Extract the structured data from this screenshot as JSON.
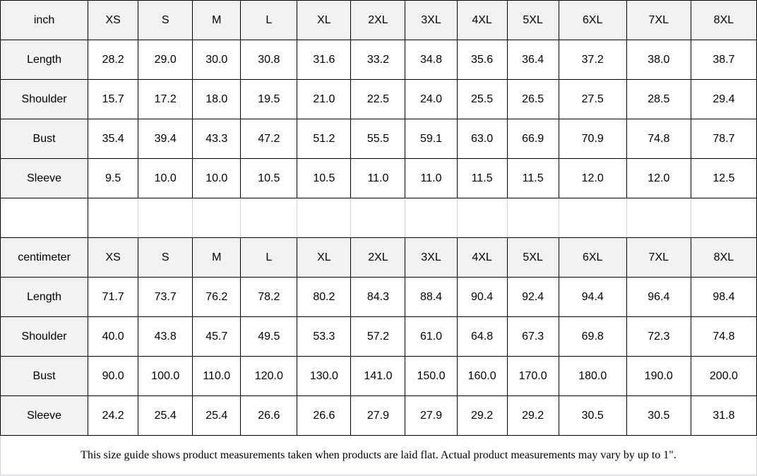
{
  "chart_data": {
    "type": "table",
    "size_columns": [
      "XS",
      "S",
      "M",
      "L",
      "XL",
      "2XL",
      "3XL",
      "4XL",
      "5XL",
      "6XL",
      "7XL",
      "8XL"
    ],
    "sections": [
      {
        "unit": "inch",
        "rows": [
          {
            "label": "Length",
            "values": [
              "28.2",
              "29.0",
              "30.0",
              "30.8",
              "31.6",
              "33.2",
              "34.8",
              "35.6",
              "36.4",
              "37.2",
              "38.0",
              "38.7"
            ]
          },
          {
            "label": "Shoulder",
            "values": [
              "15.7",
              "17.2",
              "18.0",
              "19.5",
              "21.0",
              "22.5",
              "24.0",
              "25.5",
              "26.5",
              "27.5",
              "28.5",
              "29.4"
            ]
          },
          {
            "label": "Bust",
            "values": [
              "35.4",
              "39.4",
              "43.3",
              "47.2",
              "51.2",
              "55.5",
              "59.1",
              "63.0",
              "66.9",
              "70.9",
              "74.8",
              "78.7"
            ]
          },
          {
            "label": "Sleeve",
            "values": [
              "9.5",
              "10.0",
              "10.0",
              "10.5",
              "10.5",
              "11.0",
              "11.0",
              "11.5",
              "11.5",
              "12.0",
              "12.0",
              "12.5"
            ]
          }
        ]
      },
      {
        "unit": "centimeter",
        "rows": [
          {
            "label": "Length",
            "values": [
              "71.7",
              "73.7",
              "76.2",
              "78.2",
              "80.2",
              "84.3",
              "88.4",
              "90.4",
              "92.4",
              "94.4",
              "96.4",
              "98.4"
            ]
          },
          {
            "label": "Shoulder",
            "values": [
              "40.0",
              "43.8",
              "45.7",
              "49.5",
              "53.3",
              "57.2",
              "61.0",
              "64.8",
              "67.3",
              "69.8",
              "72.3",
              "74.8"
            ]
          },
          {
            "label": "Bust",
            "values": [
              "90.0",
              "100.0",
              "110.0",
              "120.0",
              "130.0",
              "141.0",
              "150.0",
              "160.0",
              "170.0",
              "180.0",
              "190.0",
              "200.0"
            ]
          },
          {
            "label": "Sleeve",
            "values": [
              "24.2",
              "25.4",
              "25.4",
              "26.6",
              "26.6",
              "27.9",
              "27.9",
              "29.2",
              "29.2",
              "30.5",
              "30.5",
              "31.8"
            ]
          }
        ]
      }
    ],
    "footer_note": "This size guide shows product measurements taken when products are laid flat. Actual product measurements may vary by up to 1\"."
  },
  "colors": {
    "header_bg": "#f2f2f2",
    "grid_border": "#000000",
    "light_border": "#ccd4e0"
  }
}
